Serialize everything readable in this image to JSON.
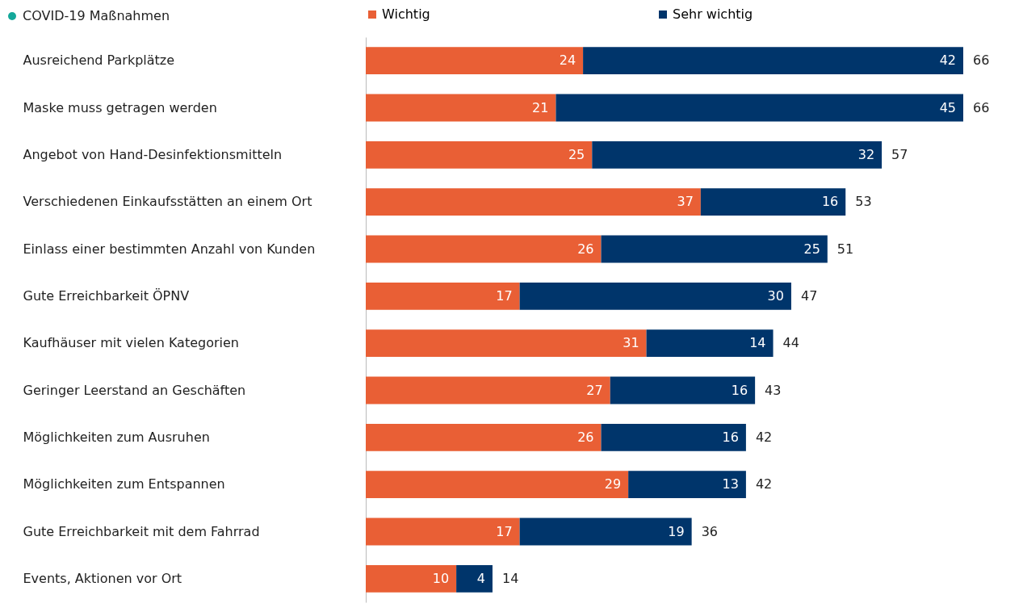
{
  "chart_data": {
    "type": "bar",
    "orientation": "horizontal",
    "stacked": true,
    "data_labels": true,
    "legend": "top",
    "annotations": [
      "COVID-19 Maßnahmen"
    ],
    "categories": [
      "Ausreichend Parkplätze",
      "Maske muss getragen werden",
      "Angebot von Hand-Desinfektionsmitteln",
      "Verschiedenen Einkaufsstätten an einem Ort",
      "Einlass einer bestimmten Anzahl von Kunden",
      "Gute Erreichbarkeit ÖPNV",
      "Kaufhäuser mit vielen Kategorien",
      "Geringer Leerstand an Geschäften",
      "Möglichkeiten zum Ausruhen",
      "Möglichkeiten zum Entspannen",
      "Gute Erreichbarkeit mit dem Fahrrad",
      "Events, Aktionen vor Ort"
    ],
    "series": [
      {
        "name": "Wichtig",
        "color": "#e95f35",
        "values": [
          24,
          21,
          25,
          37,
          26,
          17,
          31,
          27,
          26,
          29,
          17,
          10
        ]
      },
      {
        "name": "Sehr wichtig",
        "color": "#00356b",
        "values": [
          42,
          45,
          32,
          16,
          25,
          30,
          14,
          16,
          16,
          13,
          19,
          4
        ]
      }
    ],
    "totals": [
      "66",
      "66",
      "57",
      "53",
      "51",
      "47",
      "44",
      "43",
      "42",
      "42",
      "36",
      "14"
    ]
  }
}
